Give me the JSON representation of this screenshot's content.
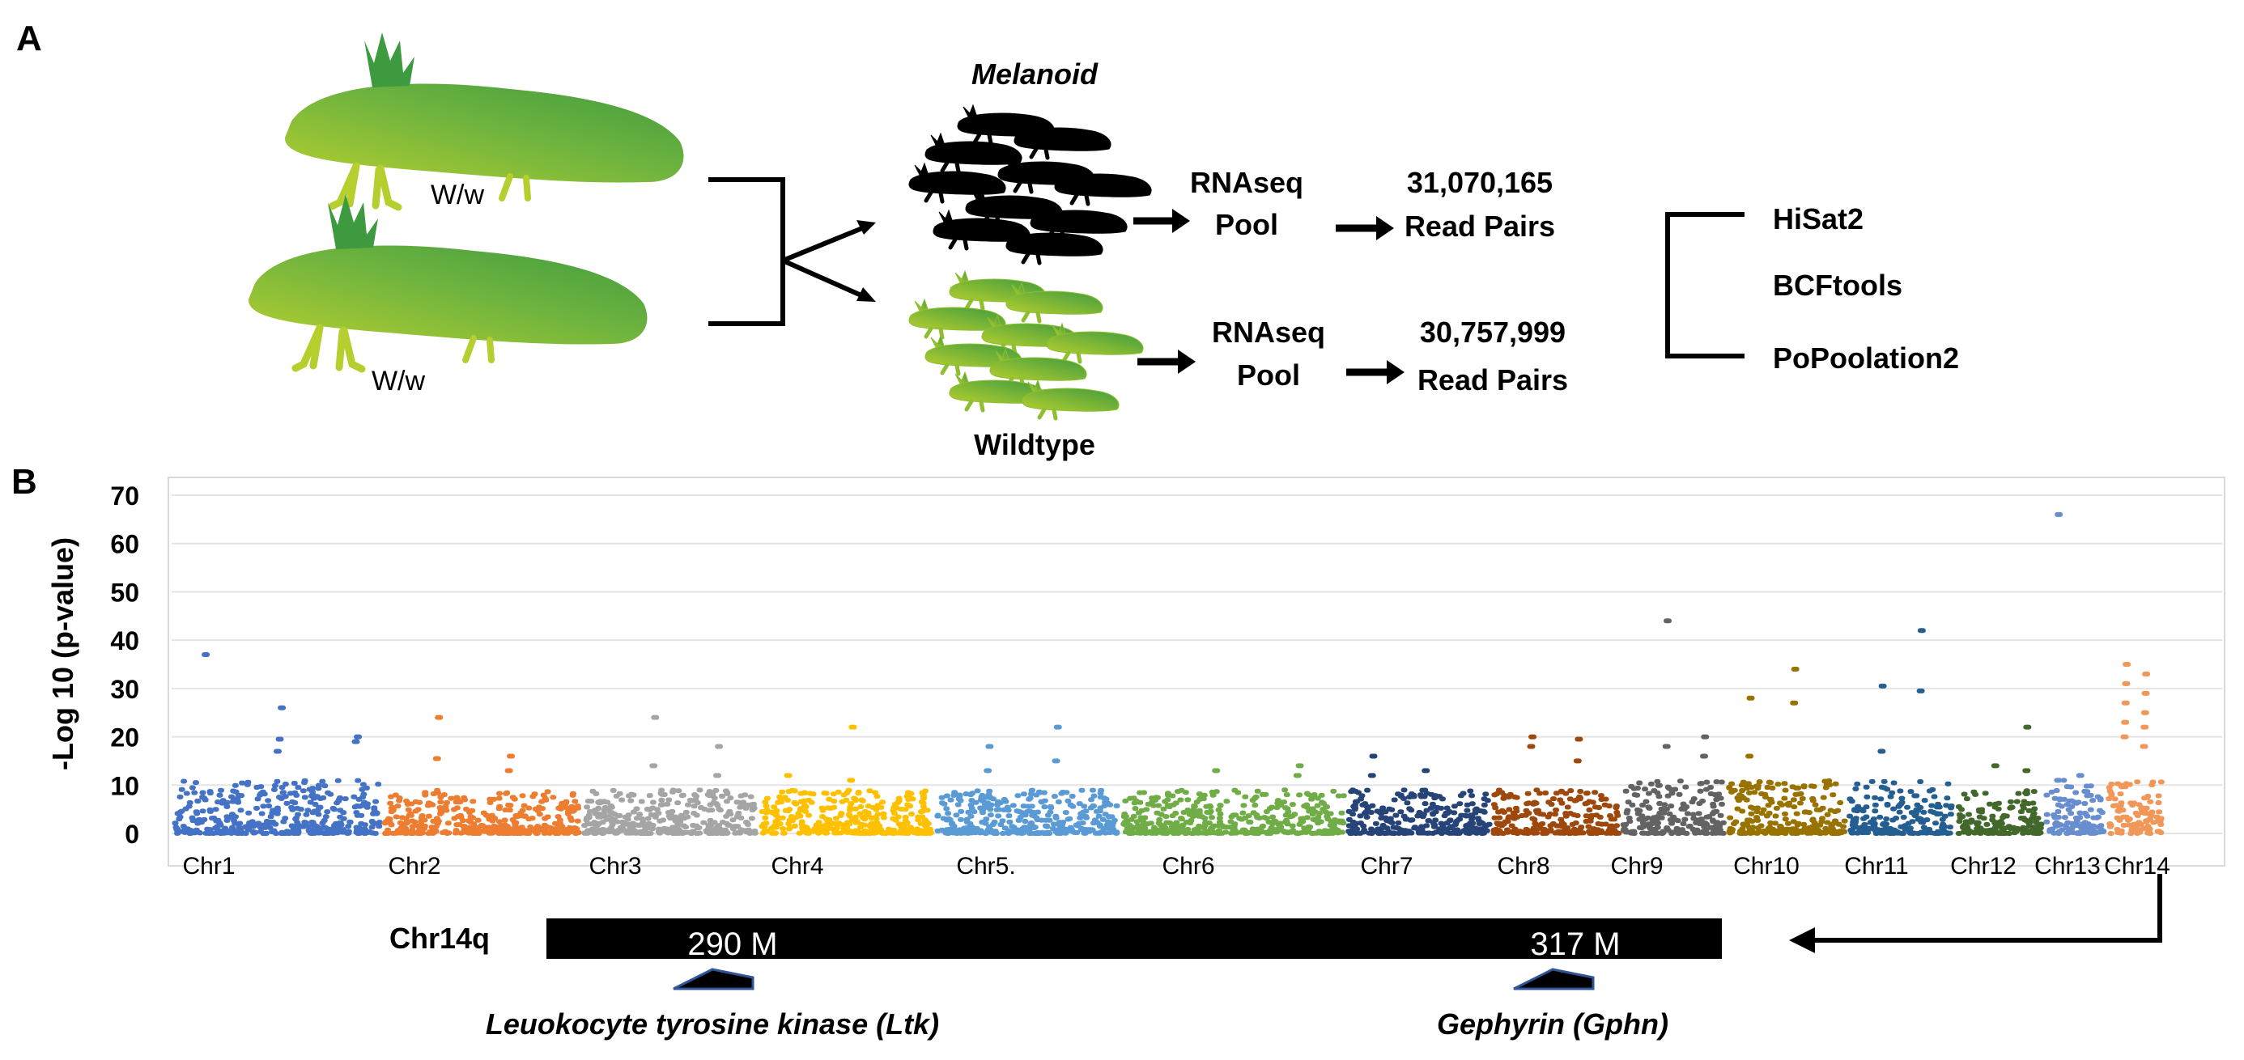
{
  "panel_a": {
    "label": "A",
    "parents": [
      {
        "genotype": "W/w"
      },
      {
        "genotype": "W/w"
      }
    ],
    "offspring": {
      "melanoid_label": "Melanoid",
      "wildtype_label": "Wildtype"
    },
    "pools": [
      {
        "line1": "RNAseq",
        "line2": "Pool",
        "reads": "31,070,165",
        "reads_label": "Read Pairs"
      },
      {
        "line1": "RNAseq",
        "line2": "Pool",
        "reads": "30,757,999",
        "reads_label": "Read Pairs"
      }
    ],
    "tools": [
      "HiSat2",
      "BCFtools",
      "PoPoolation2"
    ],
    "colors": {
      "melanoid": "#000000",
      "wildtype_light": "#b6cf2e",
      "wildtype_dark": "#3f9b3f"
    }
  },
  "panel_b": {
    "label": "B",
    "chart_data": {
      "type": "scatter",
      "title": "",
      "ylabel": "-Log 10 (p-value)",
      "xlabel": "",
      "ylim": [
        0,
        70
      ],
      "yticks": [
        0,
        10,
        20,
        30,
        40,
        50,
        60,
        70
      ],
      "grid": true,
      "series": [
        {
          "name": "Chr1",
          "color": "#4472c4",
          "max": 37,
          "outliers": [
            37,
            26,
            20,
            19.5,
            19,
            17
          ]
        },
        {
          "name": "Chr2",
          "color": "#ed7d31",
          "max": 24,
          "outliers": [
            24,
            16,
            15.5,
            13
          ]
        },
        {
          "name": "Chr3",
          "color": "#a5a5a5",
          "max": 24,
          "outliers": [
            24,
            18,
            14,
            12
          ]
        },
        {
          "name": "Chr4",
          "color": "#ffc000",
          "max": 22,
          "outliers": [
            22,
            12,
            11
          ]
        },
        {
          "name": "Chr5.",
          "color": "#5b9bd5",
          "max": 22,
          "outliers": [
            22,
            18,
            15,
            13
          ]
        },
        {
          "name": "Chr6",
          "color": "#70ad47",
          "max": 14,
          "outliers": [
            14,
            13,
            12
          ]
        },
        {
          "name": "Chr7",
          "color": "#264478",
          "max": 16,
          "outliers": [
            16,
            13,
            12
          ]
        },
        {
          "name": "Chr8",
          "color": "#9e480e",
          "max": 20,
          "outliers": [
            20,
            19.5,
            18,
            15
          ]
        },
        {
          "name": "Chr9",
          "color": "#636363",
          "max": 44,
          "outliers": [
            44,
            20,
            18,
            16
          ]
        },
        {
          "name": "Chr10",
          "color": "#997300",
          "max": 34,
          "outliers": [
            34,
            28,
            27,
            16
          ]
        },
        {
          "name": "Chr11",
          "color": "#255e91",
          "max": 42,
          "outliers": [
            42,
            30.5,
            29.5,
            17
          ]
        },
        {
          "name": "Chr12",
          "color": "#43682b",
          "max": 22,
          "outliers": [
            22,
            14,
            13
          ]
        },
        {
          "name": "Chr13",
          "color": "#698ed0",
          "max": 66,
          "outliers": [
            66,
            12,
            11
          ]
        },
        {
          "name": "Chr14",
          "color": "#f1975a",
          "max": 35,
          "outliers": [
            35,
            33,
            31,
            29,
            27,
            25,
            23,
            22,
            20,
            18
          ]
        }
      ]
    },
    "locus": {
      "label": "Chr14q",
      "marker1": "290 M",
      "marker2": "317 M",
      "gene1": "Leuokocyte tyrosine kinase (Ltk)",
      "gene2": "Gephyrin (Gphn)"
    }
  }
}
